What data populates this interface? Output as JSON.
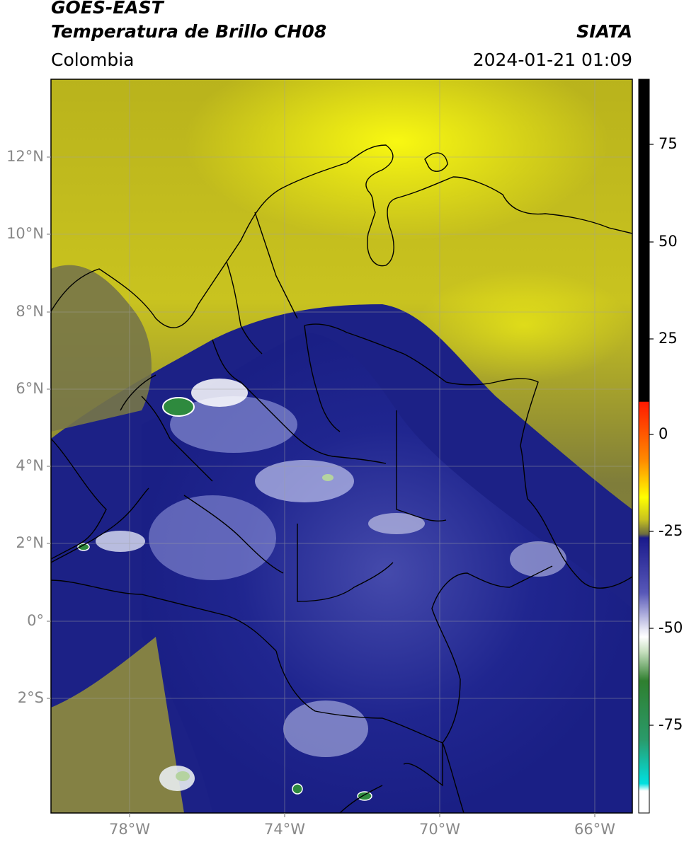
{
  "header": {
    "satellite": "GOES-EAST",
    "product": "Temperatura de Brillo CH08",
    "source": "SIATA",
    "region": "Colombia",
    "datetime": "2024-01-21 01:09"
  },
  "axes": {
    "lat_labels": [
      "12°N",
      "10°N",
      "8°N",
      "6°N",
      "4°N",
      "2°N",
      "0°",
      "2°S"
    ],
    "lon_labels": [
      "78°W",
      "74°W",
      "70°W",
      "66°W"
    ]
  },
  "colorbar": {
    "labels": [
      "75",
      "50",
      "25",
      "0",
      "-25",
      "-50",
      "-75"
    ],
    "colors": [
      "#000000",
      "#ff0000",
      "#ffff00",
      "#1a1a8c",
      "#ffffff",
      "#2f8f2f",
      "#00e5e5"
    ]
  }
}
